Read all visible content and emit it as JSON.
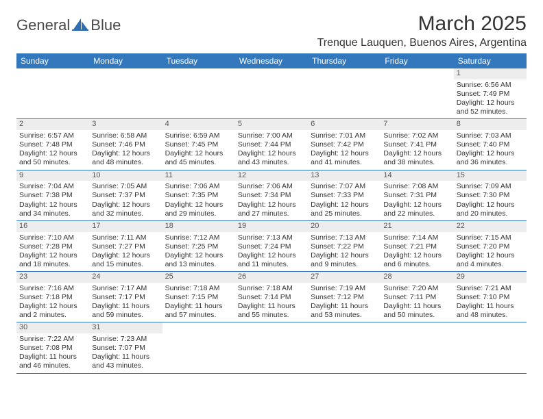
{
  "logo": {
    "general": "General",
    "blue": "Blue"
  },
  "title": "March 2025",
  "location": "Trenque Lauquen, Buenos Aires, Argentina",
  "weekdays": [
    "Sunday",
    "Monday",
    "Tuesday",
    "Wednesday",
    "Thursday",
    "Friday",
    "Saturday"
  ],
  "colors": {
    "header_bg": "#3378bd",
    "header_fg": "#ffffff",
    "grid_line": "#3378bd",
    "daynum_bg": "#ededed",
    "text": "#333333"
  },
  "days": {
    "1": {
      "sunrise": "6:56 AM",
      "sunset": "7:49 PM",
      "daylight": "12 hours and 52 minutes."
    },
    "2": {
      "sunrise": "6:57 AM",
      "sunset": "7:48 PM",
      "daylight": "12 hours and 50 minutes."
    },
    "3": {
      "sunrise": "6:58 AM",
      "sunset": "7:46 PM",
      "daylight": "12 hours and 48 minutes."
    },
    "4": {
      "sunrise": "6:59 AM",
      "sunset": "7:45 PM",
      "daylight": "12 hours and 45 minutes."
    },
    "5": {
      "sunrise": "7:00 AM",
      "sunset": "7:44 PM",
      "daylight": "12 hours and 43 minutes."
    },
    "6": {
      "sunrise": "7:01 AM",
      "sunset": "7:42 PM",
      "daylight": "12 hours and 41 minutes."
    },
    "7": {
      "sunrise": "7:02 AM",
      "sunset": "7:41 PM",
      "daylight": "12 hours and 38 minutes."
    },
    "8": {
      "sunrise": "7:03 AM",
      "sunset": "7:40 PM",
      "daylight": "12 hours and 36 minutes."
    },
    "9": {
      "sunrise": "7:04 AM",
      "sunset": "7:38 PM",
      "daylight": "12 hours and 34 minutes."
    },
    "10": {
      "sunrise": "7:05 AM",
      "sunset": "7:37 PM",
      "daylight": "12 hours and 32 minutes."
    },
    "11": {
      "sunrise": "7:06 AM",
      "sunset": "7:35 PM",
      "daylight": "12 hours and 29 minutes."
    },
    "12": {
      "sunrise": "7:06 AM",
      "sunset": "7:34 PM",
      "daylight": "12 hours and 27 minutes."
    },
    "13": {
      "sunrise": "7:07 AM",
      "sunset": "7:33 PM",
      "daylight": "12 hours and 25 minutes."
    },
    "14": {
      "sunrise": "7:08 AM",
      "sunset": "7:31 PM",
      "daylight": "12 hours and 22 minutes."
    },
    "15": {
      "sunrise": "7:09 AM",
      "sunset": "7:30 PM",
      "daylight": "12 hours and 20 minutes."
    },
    "16": {
      "sunrise": "7:10 AM",
      "sunset": "7:28 PM",
      "daylight": "12 hours and 18 minutes."
    },
    "17": {
      "sunrise": "7:11 AM",
      "sunset": "7:27 PM",
      "daylight": "12 hours and 15 minutes."
    },
    "18": {
      "sunrise": "7:12 AM",
      "sunset": "7:25 PM",
      "daylight": "12 hours and 13 minutes."
    },
    "19": {
      "sunrise": "7:13 AM",
      "sunset": "7:24 PM",
      "daylight": "12 hours and 11 minutes."
    },
    "20": {
      "sunrise": "7:13 AM",
      "sunset": "7:22 PM",
      "daylight": "12 hours and 9 minutes."
    },
    "21": {
      "sunrise": "7:14 AM",
      "sunset": "7:21 PM",
      "daylight": "12 hours and 6 minutes."
    },
    "22": {
      "sunrise": "7:15 AM",
      "sunset": "7:20 PM",
      "daylight": "12 hours and 4 minutes."
    },
    "23": {
      "sunrise": "7:16 AM",
      "sunset": "7:18 PM",
      "daylight": "12 hours and 2 minutes."
    },
    "24": {
      "sunrise": "7:17 AM",
      "sunset": "7:17 PM",
      "daylight": "11 hours and 59 minutes."
    },
    "25": {
      "sunrise": "7:18 AM",
      "sunset": "7:15 PM",
      "daylight": "11 hours and 57 minutes."
    },
    "26": {
      "sunrise": "7:18 AM",
      "sunset": "7:14 PM",
      "daylight": "11 hours and 55 minutes."
    },
    "27": {
      "sunrise": "7:19 AM",
      "sunset": "7:12 PM",
      "daylight": "11 hours and 53 minutes."
    },
    "28": {
      "sunrise": "7:20 AM",
      "sunset": "7:11 PM",
      "daylight": "11 hours and 50 minutes."
    },
    "29": {
      "sunrise": "7:21 AM",
      "sunset": "7:10 PM",
      "daylight": "11 hours and 48 minutes."
    },
    "30": {
      "sunrise": "7:22 AM",
      "sunset": "7:08 PM",
      "daylight": "11 hours and 46 minutes."
    },
    "31": {
      "sunrise": "7:23 AM",
      "sunset": "7:07 PM",
      "daylight": "11 hours and 43 minutes."
    }
  },
  "labels": {
    "sunrise": "Sunrise: ",
    "sunset": "Sunset: ",
    "daylight": "Daylight: "
  },
  "layout": {
    "first_weekday_index": 6,
    "days_in_month": 31,
    "columns": 7
  }
}
